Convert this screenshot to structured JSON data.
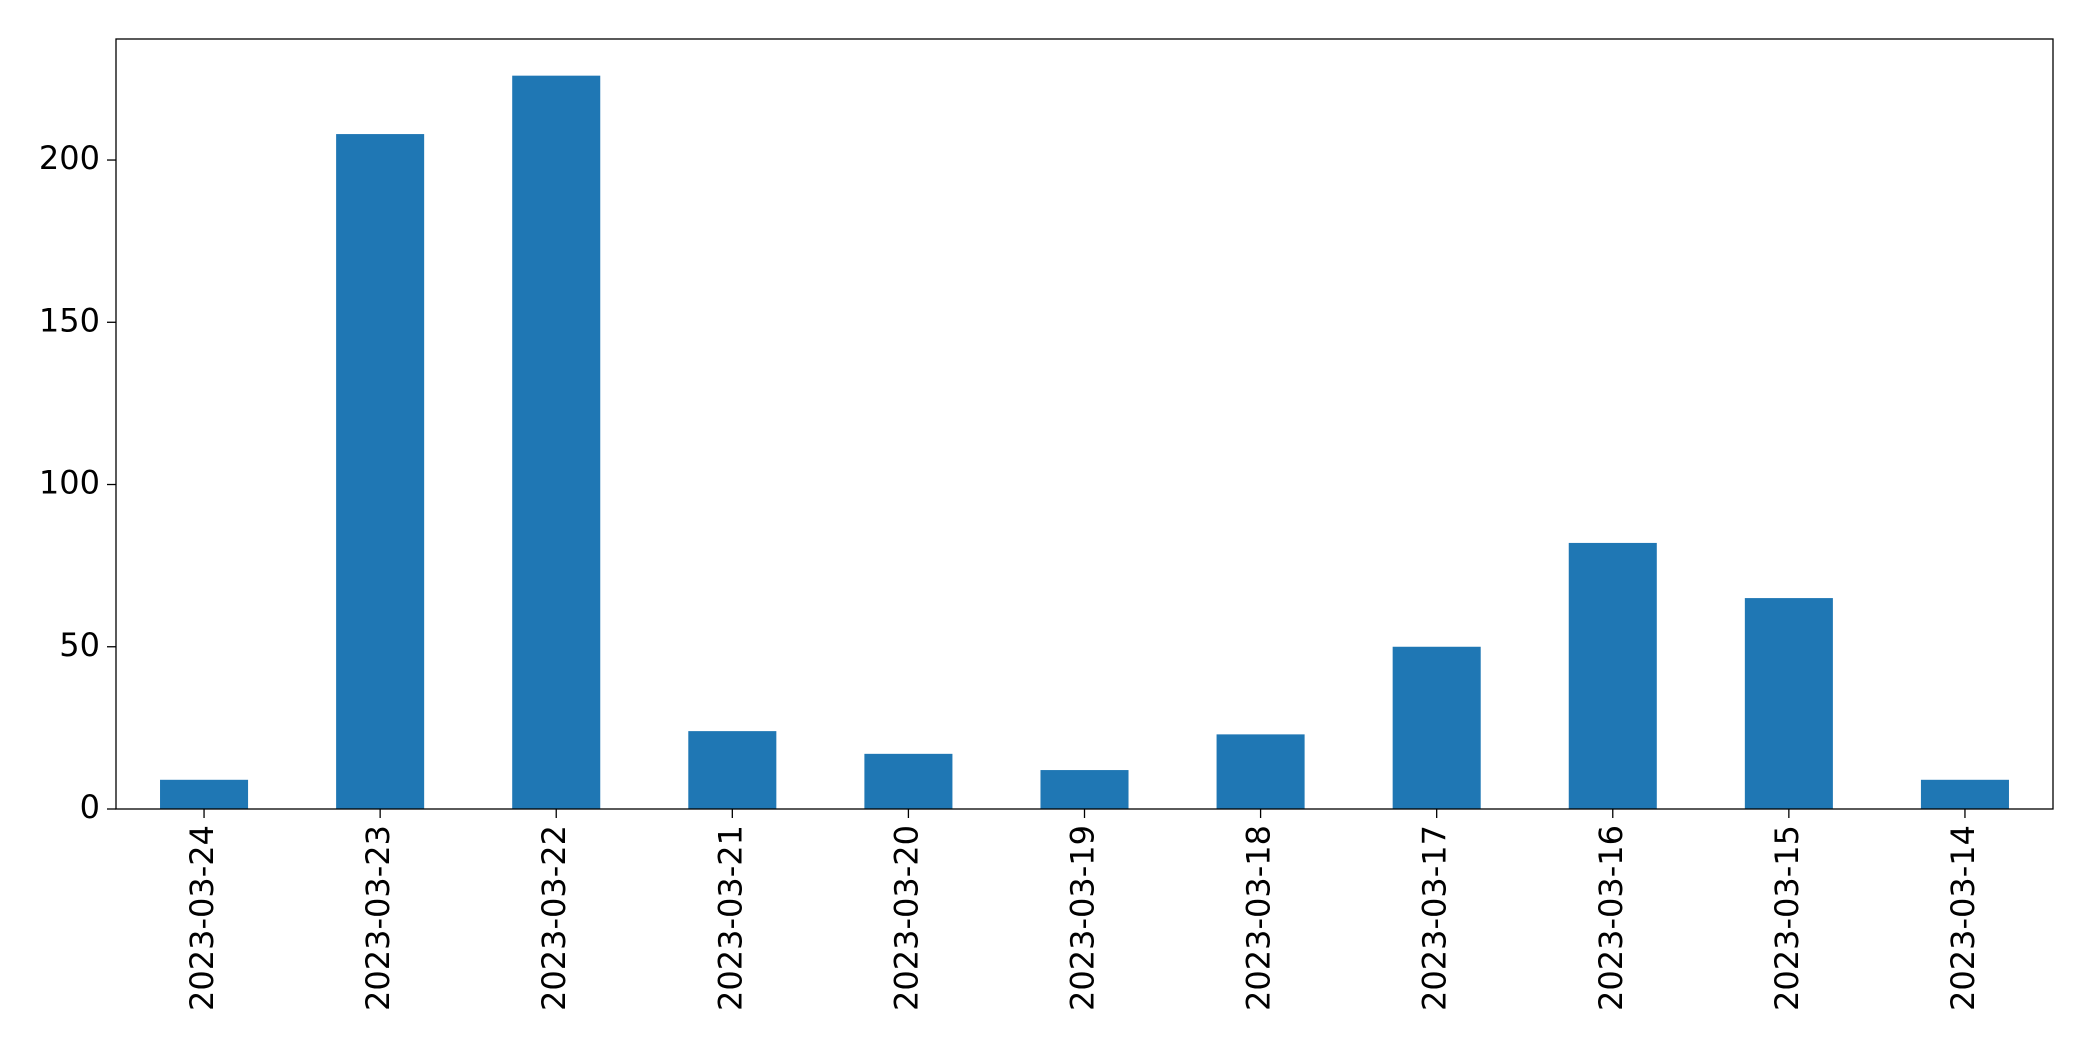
{
  "chart_data": {
    "type": "bar",
    "categories": [
      "2023-03-24",
      "2023-03-23",
      "2023-03-22",
      "2023-03-21",
      "2023-03-20",
      "2023-03-19",
      "2023-03-18",
      "2023-03-17",
      "2023-03-16",
      "2023-03-15",
      "2023-03-14"
    ],
    "values": [
      9,
      208,
      226,
      24,
      17,
      12,
      23,
      50,
      82,
      65,
      9
    ],
    "color": "#1f77b4",
    "ylim": [
      0,
      237.3
    ],
    "yticks": [
      0,
      50,
      100,
      150,
      200
    ],
    "grid": false
  }
}
